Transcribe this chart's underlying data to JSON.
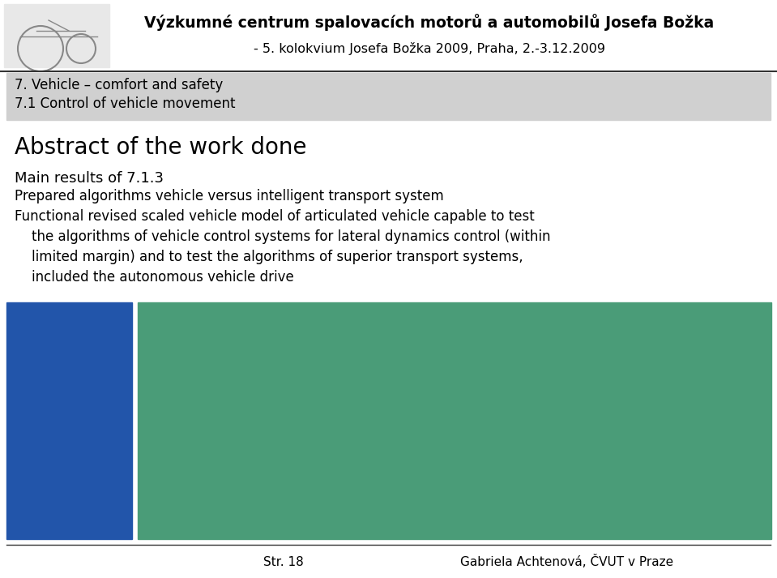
{
  "header_title_bold": "Výzkumné centrum spalovacích motorů a automobilů Josefa Božka",
  "header_subtitle": "- 5. kolokvium Josefa Božka 2009, Praha, 2.-3.12.2009",
  "box_line1": "7. Vehicle – comfort and safety",
  "box_line2": "7.1 Control of vehicle movement",
  "abstract_title": "Abstract of the work done",
  "main_results_label": "Main results of 7.1.3",
  "body_line1": "Prepared algorithms vehicle versus intelligent transport system",
  "body_line2": "Functional revised scaled vehicle model of articulated vehicle capable to test",
  "body_line3": "    the algorithms of vehicle control systems for lateral dynamics control (within",
  "body_line4": "    limited margin) and to test the algorithms of superior transport systems,",
  "body_line5": "    included the autonomous vehicle drive",
  "footer_left": "Str. 18",
  "footer_right": "Gabriela Achtenová, ČVUT v Praze",
  "bg_color": "#ffffff",
  "header_bg": "#ffffff",
  "box_bg": "#d0d0d0",
  "box_border": "#555555",
  "header_border_color": "#333333",
  "footer_line_color": "#333333",
  "text_color": "#000000",
  "photo_left_bg": "#2255aa",
  "photo_right_bg": "#4a9c78",
  "figwidth": 9.59,
  "figheight": 7.13,
  "dpi": 100
}
